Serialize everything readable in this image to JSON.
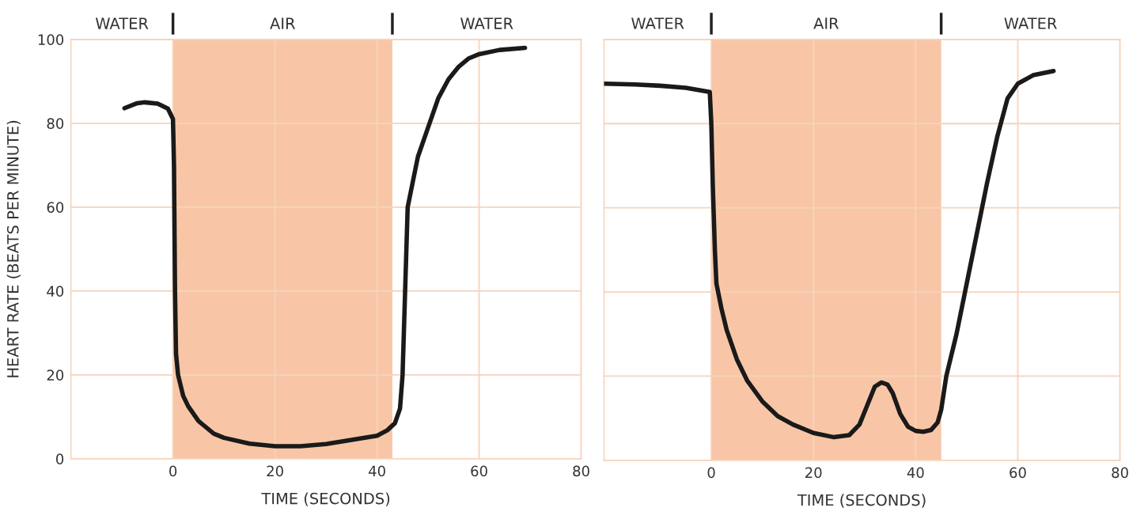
{
  "chart_data": [
    {
      "type": "line",
      "xlabel": "TIME (SECONDS)",
      "ylabel": "HEART RATE (BEATS PER MINUTE)",
      "xlim": [
        -20,
        80
      ],
      "ylim": [
        0,
        100
      ],
      "xticks": [
        0,
        20,
        40,
        60,
        80
      ],
      "yticks": [
        0,
        20,
        40,
        60,
        80,
        100
      ],
      "grid": true,
      "line_style": "solid",
      "annotations": [
        "WATER",
        "WATER"
      ],
      "bands": [
        {
          "axis": "x",
          "from": 0,
          "to": 43,
          "label": "AIR",
          "color": "#f8c6a6"
        }
      ],
      "series": [
        {
          "color": "#1a1a1a",
          "x": [
            -9.5,
            -7,
            -5.5,
            -3,
            -1,
            0,
            0.2,
            0.4,
            0.6,
            1,
            2,
            3,
            5,
            8,
            10,
            15,
            20,
            25,
            30,
            35,
            40,
            42,
            43.5,
            44.5,
            45,
            45.5,
            46,
            47,
            48,
            50,
            52,
            54,
            56,
            58,
            60,
            64,
            69
          ],
          "values": [
            83.6,
            84.8,
            85,
            84.7,
            83.5,
            81,
            70,
            40,
            25,
            20,
            15,
            12.5,
            9,
            6,
            5,
            3.6,
            3,
            3,
            3.5,
            4.5,
            5.5,
            6.8,
            8.5,
            12,
            20,
            40,
            60,
            66,
            72,
            79,
            86,
            90.5,
            93.5,
            95.5,
            96.5,
            97.5,
            98
          ]
        }
      ]
    },
    {
      "type": "line",
      "xlabel": "TIME (SECONDS)",
      "xlim": [
        -21,
        80
      ],
      "ylim": [
        0,
        100
      ],
      "xticks": [
        0,
        20,
        40,
        60,
        80
      ],
      "yticks": [
        0,
        20,
        40,
        60,
        80,
        100
      ],
      "tick_labels": "x",
      "grid": true,
      "line_style": "solid",
      "annotations": [
        "WATER",
        "WATER"
      ],
      "bands": [
        {
          "axis": "x",
          "from": 0,
          "to": 45,
          "label": "AIR",
          "color": "#f8c6a6"
        }
      ],
      "series": [
        {
          "color": "#1a1a1a",
          "x": [
            -21,
            -15,
            -10,
            -5,
            -0.3,
            0,
            0.3,
            0.7,
            1,
            2,
            3,
            5,
            7,
            10,
            13,
            16,
            20,
            24,
            27,
            29,
            30.5,
            32,
            33.3,
            34.5,
            35.5,
            37,
            38.5,
            40,
            41.5,
            43,
            44.3,
            45,
            46,
            48,
            50,
            52,
            54,
            56,
            58,
            60,
            63,
            67
          ],
          "values": [
            89.5,
            89.3,
            89,
            88.5,
            87.5,
            80,
            65,
            50,
            42,
            36,
            31,
            24,
            19,
            14,
            10.5,
            8.5,
            6.5,
            5.5,
            6,
            8.5,
            13,
            17.5,
            18.5,
            18,
            16,
            11,
            8,
            7,
            6.8,
            7.2,
            9,
            12,
            20,
            30,
            42,
            54,
            66,
            77,
            86,
            89.5,
            91.5,
            92.5
          ]
        }
      ]
    }
  ]
}
